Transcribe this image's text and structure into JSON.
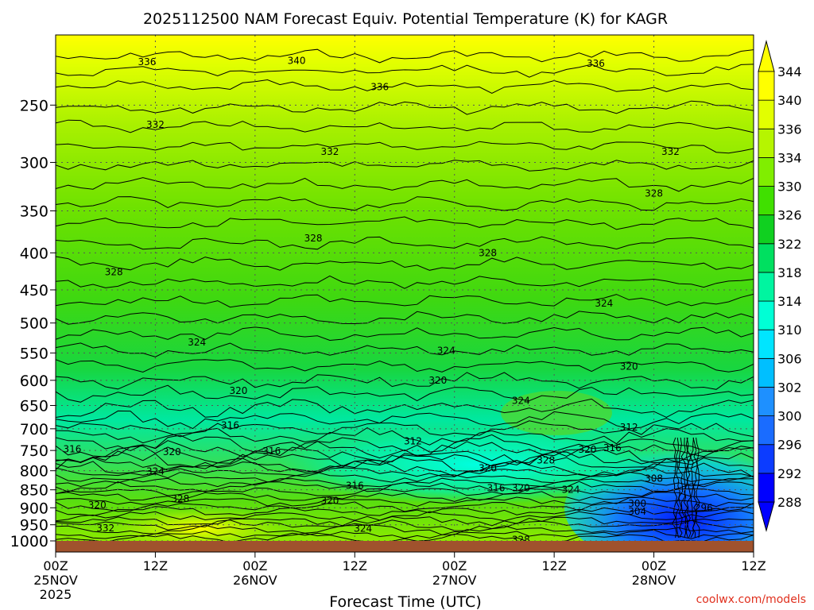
{
  "chart_data": {
    "type": "heatmap",
    "title": "2025112500 NAM Forecast Equiv. Potential Temperature (K) for KAGR",
    "xlabel": "Forecast Time (UTC)",
    "watermark": "coolwx.com/models",
    "x_ticks": [
      {
        "hour": 0,
        "l1": "00Z",
        "l2": "25NOV",
        "l3": "2025"
      },
      {
        "hour": 12,
        "l1": "12Z",
        "l2": "",
        "l3": ""
      },
      {
        "hour": 24,
        "l1": "00Z",
        "l2": "26NOV",
        "l3": ""
      },
      {
        "hour": 36,
        "l1": "12Z",
        "l2": "",
        "l3": ""
      },
      {
        "hour": 48,
        "l1": "00Z",
        "l2": "27NOV",
        "l3": ""
      },
      {
        "hour": 60,
        "l1": "12Z",
        "l2": "",
        "l3": ""
      },
      {
        "hour": 72,
        "l1": "00Z",
        "l2": "28NOV",
        "l3": ""
      },
      {
        "hour": 84,
        "l1": "12Z",
        "l2": "",
        "l3": ""
      }
    ],
    "xlim": [
      0,
      84
    ],
    "y_ticks": [
      250,
      300,
      350,
      400,
      450,
      500,
      550,
      600,
      650,
      700,
      750,
      800,
      850,
      900,
      950,
      1000
    ],
    "ylim": [
      1000,
      200
    ],
    "y_scale": "log-pressure",
    "grid": true,
    "colorbar": {
      "placement": "right",
      "levels": [
        288,
        292,
        296,
        300,
        302,
        306,
        310,
        314,
        318,
        322,
        326,
        330,
        334,
        336,
        340,
        344
      ],
      "colors": [
        "#0000ff",
        "#0c3cff",
        "#1a6cff",
        "#1e90ff",
        "#00bfff",
        "#00e5ff",
        "#00ffd5",
        "#00f5a0",
        "#00e060",
        "#10d020",
        "#40e000",
        "#80ee00",
        "#b6f500",
        "#e2ff00",
        "#ffff00"
      ]
    },
    "contour_labels": [
      {
        "v": "340",
        "h": 29,
        "p": 217
      },
      {
        "v": "336",
        "h": 11,
        "p": 218
      },
      {
        "v": "336",
        "h": 65,
        "p": 219
      },
      {
        "v": "336",
        "h": 39,
        "p": 236
      },
      {
        "v": "332",
        "h": 12,
        "p": 266
      },
      {
        "v": "332",
        "h": 33,
        "p": 290
      },
      {
        "v": "332",
        "h": 74,
        "p": 290
      },
      {
        "v": "328",
        "h": 72,
        "p": 331
      },
      {
        "v": "328",
        "h": 31,
        "p": 382
      },
      {
        "v": "328",
        "h": 52,
        "p": 400
      },
      {
        "v": "328",
        "h": 7,
        "p": 425
      },
      {
        "v": "324",
        "h": 66,
        "p": 470
      },
      {
        "v": "324",
        "h": 17,
        "p": 532
      },
      {
        "v": "324",
        "h": 47,
        "p": 546
      },
      {
        "v": "320",
        "h": 69,
        "p": 574
      },
      {
        "v": "320",
        "h": 46,
        "p": 600
      },
      {
        "v": "320",
        "h": 22,
        "p": 620
      },
      {
        "v": "324",
        "h": 56,
        "p": 640
      },
      {
        "v": "316",
        "h": 21,
        "p": 692
      },
      {
        "v": "312",
        "h": 43,
        "p": 728
      },
      {
        "v": "312",
        "h": 69,
        "p": 697
      },
      {
        "v": "316",
        "h": 2,
        "p": 747
      },
      {
        "v": "320",
        "h": 14,
        "p": 754
      },
      {
        "v": "316",
        "h": 26,
        "p": 752
      },
      {
        "v": "320",
        "h": 64,
        "p": 748
      },
      {
        "v": "316",
        "h": 67,
        "p": 744
      },
      {
        "v": "328",
        "h": 59,
        "p": 774
      },
      {
        "v": "320",
        "h": 52,
        "p": 794
      },
      {
        "v": "324",
        "h": 12,
        "p": 802
      },
      {
        "v": "308",
        "h": 72,
        "p": 820
      },
      {
        "v": "316",
        "h": 36,
        "p": 839
      },
      {
        "v": "316",
        "h": 53,
        "p": 845
      },
      {
        "v": "320",
        "h": 56,
        "p": 845
      },
      {
        "v": "324",
        "h": 62,
        "p": 850
      },
      {
        "v": "328",
        "h": 15,
        "p": 875
      },
      {
        "v": "320",
        "h": 33,
        "p": 880
      },
      {
        "v": "320",
        "h": 5,
        "p": 892
      },
      {
        "v": "300",
        "h": 70,
        "p": 888
      },
      {
        "v": "304",
        "h": 70,
        "p": 911
      },
      {
        "v": "296",
        "h": 78,
        "p": 900
      },
      {
        "v": "332",
        "h": 6,
        "p": 960
      },
      {
        "v": "324",
        "h": 37,
        "p": 962
      },
      {
        "v": "328",
        "h": 56,
        "p": 996
      }
    ]
  }
}
